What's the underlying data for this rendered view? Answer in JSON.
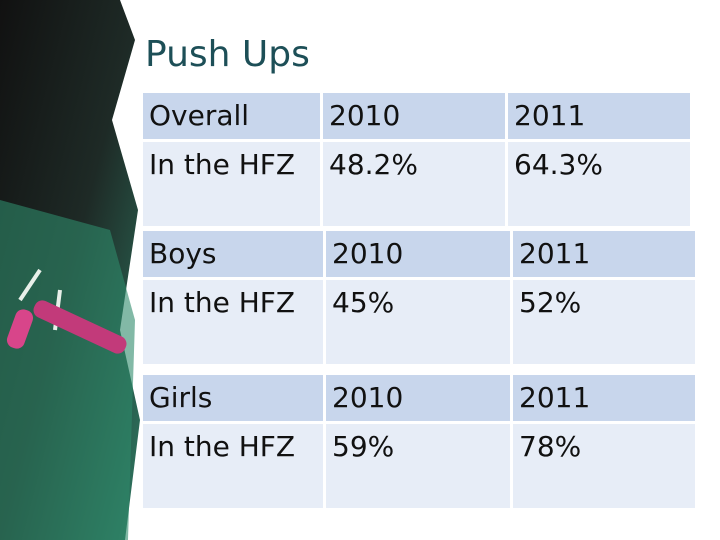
{
  "title": "Push Ups",
  "tables": [
    {
      "header": [
        "Overall",
        "2010",
        "2011"
      ],
      "rows": [
        [
          "In the HFZ",
          "48.2%",
          "64.3%"
        ]
      ]
    },
    {
      "header": [
        "Boys",
        "2010",
        "2011"
      ],
      "rows": [
        [
          "In the HFZ",
          "45%",
          "52%"
        ]
      ]
    },
    {
      "header": [
        "Girls",
        "2010",
        "2011"
      ],
      "rows": [
        [
          "In the HFZ",
          "59%",
          "78%"
        ]
      ]
    }
  ]
}
